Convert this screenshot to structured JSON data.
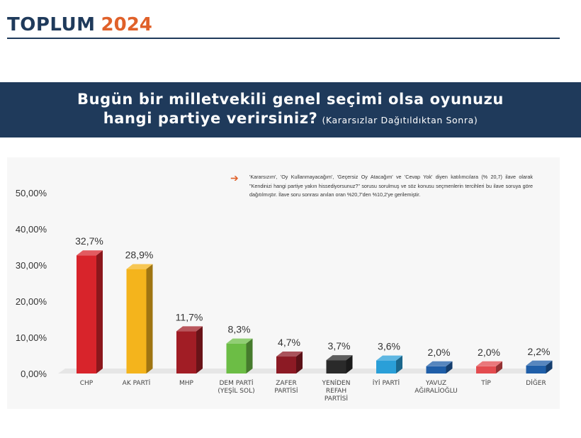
{
  "logo": {
    "brand": "TOPLUM",
    "year": "2024"
  },
  "title": {
    "line1": "Bugün bir milletvekili genel seçimi olsa oyunuzu",
    "line2": "hangi partiye verirsiniz?",
    "subtitle": "(Kararsızlar Dağıtıldıktan Sonra)"
  },
  "note": "'Kararsızım', 'Oy Kullanmayacağım', 'Geçersiz Oy Atacağım' ve 'Cevap Yok' diyen katılımcılara (% 20,7) ilave olarak \"Kendinizi hangi partiye yakın hissediyorsunuz?\" sorusu sorulmuş ve söz konusu seçmenlerin tercihleri bu ilave soruya göre dağıtılmıştır. İlave soru sonrası anılan oran %20,7'den %10,2'ye gerilemiştir.",
  "chart_data": {
    "type": "bar",
    "categories": [
      [
        "CHP"
      ],
      [
        "AK PARTİ"
      ],
      [
        "MHP"
      ],
      [
        "DEM PARTİ",
        "(YEŞİL SOL)"
      ],
      [
        "ZAFER",
        "PARTİSİ"
      ],
      [
        "YENİDEN",
        "REFAH",
        "PARTİSİ"
      ],
      [
        "İYİ PARTİ"
      ],
      [
        "YAVUZ",
        "AĞIRALİOĞLU"
      ],
      [
        "TİP"
      ],
      [
        "DİĞER"
      ]
    ],
    "values": [
      32.7,
      28.9,
      11.7,
      8.3,
      4.7,
      3.7,
      3.6,
      2.0,
      2.0,
      2.2
    ],
    "value_labels": [
      "32,7%",
      "28,9%",
      "11,7%",
      "8,3%",
      "4,7%",
      "3,7%",
      "3,6%",
      "2,0%",
      "2,0%",
      "2,2%"
    ],
    "colors": [
      "#d8242b",
      "#f4b41c",
      "#a11d25",
      "#6cbd45",
      "#8c1a24",
      "#2a2a2a",
      "#2a9fd8",
      "#1f5ea8",
      "#e34b4f",
      "#1f5ea8"
    ],
    "ylim": [
      0,
      50
    ],
    "yticks": [
      0,
      10,
      20,
      30,
      40,
      50
    ],
    "ytick_labels": [
      "0,00%",
      "10,00%",
      "20,00%",
      "30,00%",
      "40,00%",
      "50,00%"
    ],
    "grid": false,
    "style": "3d-bars"
  }
}
